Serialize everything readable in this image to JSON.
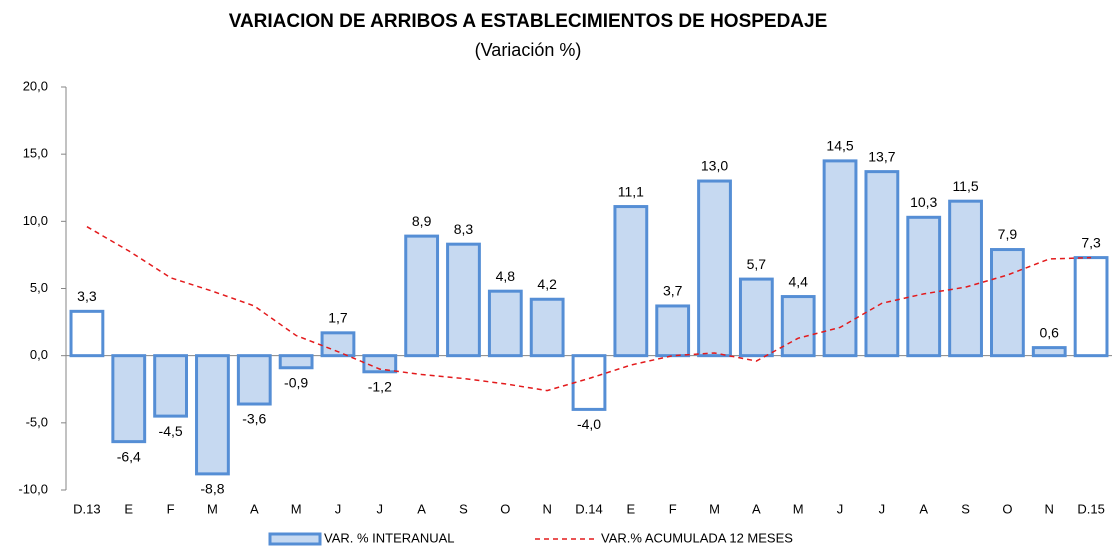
{
  "chart_data": {
    "type": "bar",
    "title": "VARIACION DE ARRIBOS A ESTABLECIMIENTOS DE HOSPEDAJE",
    "subtitle": "(Variación %)",
    "categories": [
      "D.13",
      "E",
      "F",
      "M",
      "A",
      "M",
      "J",
      "J",
      "A",
      "S",
      "O",
      "N",
      "D.14",
      "E",
      "F",
      "M",
      "A",
      "M",
      "J",
      "J",
      "A",
      "S",
      "O",
      "N",
      "D.15"
    ],
    "series": [
      {
        "name": "VAR. % INTERANUAL",
        "type": "bar",
        "color": "#c6d9f1",
        "edge_color": "#558ed5",
        "fills": [
          "#ffffff",
          "#c6d9f1",
          "#c6d9f1",
          "#c6d9f1",
          "#c6d9f1",
          "#c6d9f1",
          "#c6d9f1",
          "#c6d9f1",
          "#c6d9f1",
          "#c6d9f1",
          "#c6d9f1",
          "#c6d9f1",
          "#ffffff",
          "#c6d9f1",
          "#c6d9f1",
          "#c6d9f1",
          "#c6d9f1",
          "#c6d9f1",
          "#c6d9f1",
          "#c6d9f1",
          "#c6d9f1",
          "#c6d9f1",
          "#c6d9f1",
          "#c6d9f1",
          "#ffffff"
        ],
        "values": [
          3.3,
          -6.4,
          -4.5,
          -8.8,
          -3.6,
          -0.9,
          1.7,
          -1.2,
          8.9,
          8.3,
          4.8,
          4.2,
          -4.0,
          11.1,
          3.7,
          13.0,
          5.7,
          4.4,
          14.5,
          13.7,
          10.3,
          11.5,
          7.9,
          0.6,
          7.3
        ],
        "value_labels": [
          "3,3",
          "-6,4",
          "-4,5",
          "-8,8",
          "-3,6",
          "-0,9",
          "1,7",
          "-1,2",
          "8,9",
          "8,3",
          "4,8",
          "4,2",
          "-4,0",
          "11,1",
          "3,7",
          "13,0",
          "5,7",
          "4,4",
          "14,5",
          "13,7",
          "10,3",
          "11,5",
          "7,9",
          "0,6",
          "7,3"
        ]
      },
      {
        "name": "VAR.% ACUMULADA 12 MESES",
        "type": "line",
        "color": "#e31a1c",
        "dashed": true,
        "values": [
          9.6,
          7.8,
          5.8,
          4.8,
          3.7,
          1.5,
          0.3,
          -1.0,
          -1.4,
          -1.7,
          -2.1,
          -2.6,
          -1.7,
          -0.7,
          0.0,
          0.2,
          -0.4,
          1.3,
          2.1,
          3.9,
          4.6,
          5.1,
          6.0,
          7.2,
          7.3
        ]
      }
    ],
    "ylim": [
      -10,
      20
    ],
    "yticks": [
      {
        "value": -10,
        "label": "-10,0"
      },
      {
        "value": -5,
        "label": "-5,0"
      },
      {
        "value": 0,
        "label": "0,0"
      },
      {
        "value": 5,
        "label": "5,0"
      },
      {
        "value": 10,
        "label": "10,0"
      },
      {
        "value": 15,
        "label": "15,0"
      },
      {
        "value": 20,
        "label": "20,0"
      }
    ],
    "grid": false,
    "legend": "bottom"
  }
}
